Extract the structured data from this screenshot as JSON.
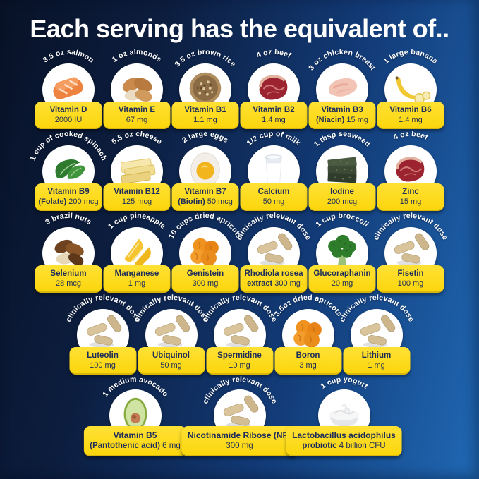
{
  "title": "Each serving has the equivalent of..",
  "colors": {
    "background_dark": "#081227",
    "background_bright": "#2069b5",
    "label_background": "#fbd60d",
    "label_text": "#1d2c5a",
    "arc_label_text": "#ffffff",
    "circle_background": "#ffffff"
  },
  "rows": [
    {
      "items": [
        {
          "arc_label": "3.5 oz salmon",
          "icon": "salmon-icon",
          "name": "Vitamin D",
          "name2": "",
          "amount": "2000 IU"
        },
        {
          "arc_label": "1 oz almonds",
          "icon": "almonds-icon",
          "name": "Vitamin E",
          "name2": "",
          "amount": "67 mg"
        },
        {
          "arc_label": "3.5 oz brown rice",
          "icon": "brown-rice-icon",
          "name": "Vitamin B1",
          "name2": "",
          "amount": "1.1 mg"
        },
        {
          "arc_label": "4 oz beef",
          "icon": "beef-icon",
          "name": "Vitamin B2",
          "name2": "",
          "amount": "1.4 mg"
        },
        {
          "arc_label": "3 oz chicken breast",
          "icon": "chicken-icon",
          "name": "Vitamin B3",
          "name2": "(Niacin)",
          "amount": "15 mg"
        },
        {
          "arc_label": "1 large banana",
          "icon": "banana-icon",
          "name": "Vitamin B6",
          "name2": "",
          "amount": "1.4 mg"
        }
      ]
    },
    {
      "items": [
        {
          "arc_label": "1 cup of cooked spinach",
          "icon": "spinach-icon",
          "name": "Vitamin B9",
          "name2": "(Folate)",
          "amount": "200 mcg"
        },
        {
          "arc_label": "5.5 oz cheese",
          "icon": "cheese-icon",
          "name": "Vitamin B12",
          "name2": "",
          "amount": "125 mcg"
        },
        {
          "arc_label": "2 large eggs",
          "icon": "egg-icon",
          "name": "Vitamin B7",
          "name2": "(Biotin)",
          "amount": "50 mcg"
        },
        {
          "arc_label": "1/2 cup of milk",
          "icon": "milk-icon",
          "name": "Calcium",
          "name2": "",
          "amount": "50 mg"
        },
        {
          "arc_label": "1 tbsp seaweed",
          "icon": "seaweed-icon",
          "name": "Iodine",
          "name2": "",
          "amount": "200 mcg"
        },
        {
          "arc_label": "4 oz beef",
          "icon": "beef-icon",
          "name": "Zinc",
          "name2": "",
          "amount": "15 mg"
        }
      ]
    },
    {
      "items": [
        {
          "arc_label": "3 brazil nuts",
          "icon": "brazil-nuts-icon",
          "name": "Selenium",
          "name2": "",
          "amount": "28 mcg"
        },
        {
          "arc_label": "1 cup pineapple",
          "icon": "pineapple-icon",
          "name": "Manganese",
          "name2": "",
          "amount": "1 mg"
        },
        {
          "arc_label": "10 cups dried apricots",
          "icon": "apricots-icon",
          "name": "Genistein",
          "name2": "",
          "amount": "300 mg"
        },
        {
          "arc_label": "clinically relevant dose",
          "icon": "capsules-icon",
          "name": "Rhodiola rosea",
          "name2": "extract",
          "amount": "300 mg"
        },
        {
          "arc_label": "1 cup broccoli",
          "icon": "broccoli-icon",
          "name": "Glucoraphanin",
          "name2": "",
          "amount": "20 mg"
        },
        {
          "arc_label": "clinically relevant dose",
          "icon": "capsules-icon",
          "name": "Fisetin",
          "name2": "",
          "amount": "100 mg"
        }
      ]
    },
    {
      "items": [
        {
          "arc_label": "clinically relevant dose",
          "icon": "capsules-icon",
          "name": "Luteolin",
          "name2": "",
          "amount": "100 mg"
        },
        {
          "arc_label": "clinically relevant dose",
          "icon": "capsules-icon",
          "name": "Ubiquinol",
          "name2": "",
          "amount": "50 mg"
        },
        {
          "arc_label": "clinically relevant dose",
          "icon": "capsules-icon",
          "name": "Spermidine",
          "name2": "",
          "amount": "10 mg"
        },
        {
          "arc_label": "3.5oz dried apricots",
          "icon": "apricots-icon",
          "name": "Boron",
          "name2": "",
          "amount": "3 mg"
        },
        {
          "arc_label": "clinically relevant dose",
          "icon": "capsules-icon",
          "name": "Lithium",
          "name2": "",
          "amount": "1 mg"
        }
      ]
    },
    {
      "wide": true,
      "items": [
        {
          "arc_label": "1 medium avocado",
          "icon": "avocado-icon",
          "name": "Vitamin B5",
          "name2": "(Pantothenic acid)",
          "amount": "6 mg"
        },
        {
          "arc_label": "clinically relevant dose",
          "icon": "capsules-icon",
          "name": "Nicotinamide Ribose (NR)",
          "name2": "",
          "amount": "300 mg"
        },
        {
          "arc_label": "1 cup yogurt",
          "icon": "yogurt-icon",
          "name": "Lactobacillus acidophilus",
          "name2": "probiotic",
          "amount": "4 billion CFU"
        }
      ]
    }
  ]
}
